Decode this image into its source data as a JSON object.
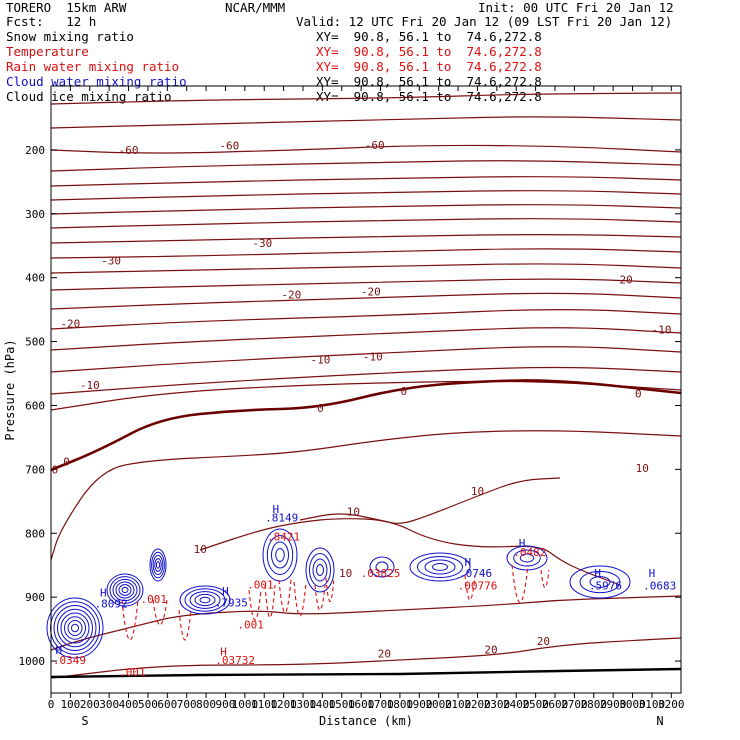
{
  "header": {
    "model": "TORERO  15km ARW",
    "center": "NCAR/MMM",
    "init": "Init: 00 UTC Fri 20 Jan 12",
    "fcst": "Fcst:   12 h",
    "valid": "Valid: 12 UTC Fri 20 Jan 12 (09 LST Fri 20 Jan 12)"
  },
  "colors": {
    "temperature": "#7a1010",
    "freezing": "#6b0000",
    "rain": "#e01010",
    "cloud": "#1010cc",
    "axis": "#000000"
  },
  "chart_data": {
    "type": "contour",
    "fields": [
      {
        "name": "Snow mixing ratio",
        "color": "#000000",
        "xy": "XY=  90.8, 56.1 to  74.6,272.8"
      },
      {
        "name": "Temperature",
        "color": "#cc1010",
        "xy": "XY=  90.8, 56.1 to  74.6,272.8"
      },
      {
        "name": "Rain water mixing ratio",
        "color": "#e01010",
        "xy": "XY=  90.8, 56.1 to  74.6,272.8"
      },
      {
        "name": "Cloud water mixing ratio",
        "color": "#1010cc",
        "xy": "XY=  90.8, 56.1 to  74.6,272.8"
      },
      {
        "name": "Cloud ice mixing ratio",
        "color": "#000000",
        "xy": "XY=  90.8, 56.1 to  74.6,272.8"
      }
    ],
    "xlabel": "Distance (km)",
    "ylabel": "Pressure (hPa)",
    "xlim": [
      0,
      3250
    ],
    "ylim": [
      1050,
      100
    ],
    "xticks": [
      0,
      100,
      200,
      300,
      400,
      500,
      600,
      700,
      800,
      900,
      1000,
      1100,
      1200,
      1300,
      1400,
      1500,
      1600,
      1700,
      1800,
      1900,
      2000,
      2100,
      2200,
      2300,
      2400,
      2500,
      2600,
      2700,
      2800,
      2900,
      3000,
      3100,
      3200
    ],
    "yticks": [
      200,
      300,
      400,
      500,
      600,
      700,
      800,
      900,
      1000
    ],
    "endpoints": {
      "left": "S",
      "right": "N"
    },
    "isotherm_labels": [
      {
        "text": "-60",
        "x": 400,
        "p": 200
      },
      {
        "text": "-60",
        "x": 920,
        "p": 193
      },
      {
        "text": "-60",
        "x": 1670,
        "p": 192
      },
      {
        "text": "-30",
        "x": 1090,
        "p": 346
      },
      {
        "text": "-30",
        "x": 310,
        "p": 373
      },
      {
        "text": "-20",
        "x": 1240,
        "p": 426
      },
      {
        "text": "-20",
        "x": 1650,
        "p": 422
      },
      {
        "text": "-20",
        "x": 2950,
        "p": 403
      },
      {
        "text": "-20",
        "x": 100,
        "p": 472
      },
      {
        "text": "-10",
        "x": 1390,
        "p": 528
      },
      {
        "text": "-10",
        "x": 1660,
        "p": 523
      },
      {
        "text": "-10",
        "x": 3150,
        "p": 481
      },
      {
        "text": "-10",
        "x": 200,
        "p": 568
      },
      {
        "text": "0",
        "x": 1390,
        "p": 604
      },
      {
        "text": "0",
        "x": 1820,
        "p": 577
      },
      {
        "text": "0",
        "x": 3030,
        "p": 581
      },
      {
        "text": "0",
        "x": 80,
        "p": 688
      },
      {
        "text": "0",
        "x": 20,
        "p": 700
      },
      {
        "text": "10",
        "x": 3050,
        "p": 698
      },
      {
        "text": "10",
        "x": 2200,
        "p": 734
      },
      {
        "text": "10",
        "x": 1560,
        "p": 766
      },
      {
        "text": "10",
        "x": 770,
        "p": 825
      },
      {
        "text": "10",
        "x": 1520,
        "p": 862
      },
      {
        "text": "20",
        "x": 1720,
        "p": 988
      },
      {
        "text": "20",
        "x": 2270,
        "p": 982
      },
      {
        "text": "20",
        "x": 2540,
        "p": 969
      }
    ],
    "extrema_labels": [
      {
        "text": "H",
        "x": 1160,
        "p": 762,
        "color": "#1010cc"
      },
      {
        "text": ".8149",
        "x": 1190,
        "p": 775,
        "color": "#1010cc"
      },
      {
        "text": ".8421",
        "x": 1200,
        "p": 805,
        "color": "#e01010"
      },
      {
        "text": ".001",
        "x": 1080,
        "p": 880,
        "color": "#e01010"
      },
      {
        "text": "H",
        "x": 270,
        "p": 893,
        "color": "#1010cc"
      },
      {
        "text": ".8092",
        "x": 310,
        "p": 910,
        "color": "#1010cc"
      },
      {
        "text": ".001",
        "x": 530,
        "p": 903,
        "color": "#e01010"
      },
      {
        "text": "H",
        "x": 900,
        "p": 890,
        "color": "#1010cc"
      },
      {
        "text": ".7935",
        "x": 930,
        "p": 908,
        "color": "#1010cc"
      },
      {
        "text": ".001",
        "x": 1030,
        "p": 943,
        "color": "#e01010"
      },
      {
        "text": "H",
        "x": 890,
        "p": 985,
        "color": "#e01010"
      },
      {
        "text": ".03732",
        "x": 950,
        "p": 998,
        "color": "#e01010"
      },
      {
        "text": "H",
        "x": 40,
        "p": 983,
        "color": "#1010cc"
      },
      {
        "text": ".0349",
        "x": 95,
        "p": 998,
        "color": "#e01010"
      },
      {
        "text": ".001",
        "x": 420,
        "p": 1017,
        "color": "#e01010"
      },
      {
        "text": ".03825",
        "x": 1700,
        "p": 862,
        "color": "#e01010"
      },
      {
        "text": "H",
        "x": 2150,
        "p": 845,
        "color": "#1010cc"
      },
      {
        "text": ".0746",
        "x": 2190,
        "p": 862,
        "color": "#1010cc"
      },
      {
        "text": ".00776",
        "x": 2200,
        "p": 882,
        "color": "#e01010"
      },
      {
        "text": "H",
        "x": 2430,
        "p": 815,
        "color": "#1010cc"
      },
      {
        "text": ".0482",
        "x": 2470,
        "p": 829,
        "color": "#e01010"
      },
      {
        "text": "H",
        "x": 2820,
        "p": 862,
        "color": "#1010cc"
      },
      {
        "text": ".5976",
        "x": 2860,
        "p": 882,
        "color": "#1010cc"
      },
      {
        "text": "H",
        "x": 3100,
        "p": 862,
        "color": "#1010cc"
      },
      {
        "text": ".0683",
        "x": 3140,
        "p": 882,
        "color": "#1010cc"
      }
    ]
  }
}
